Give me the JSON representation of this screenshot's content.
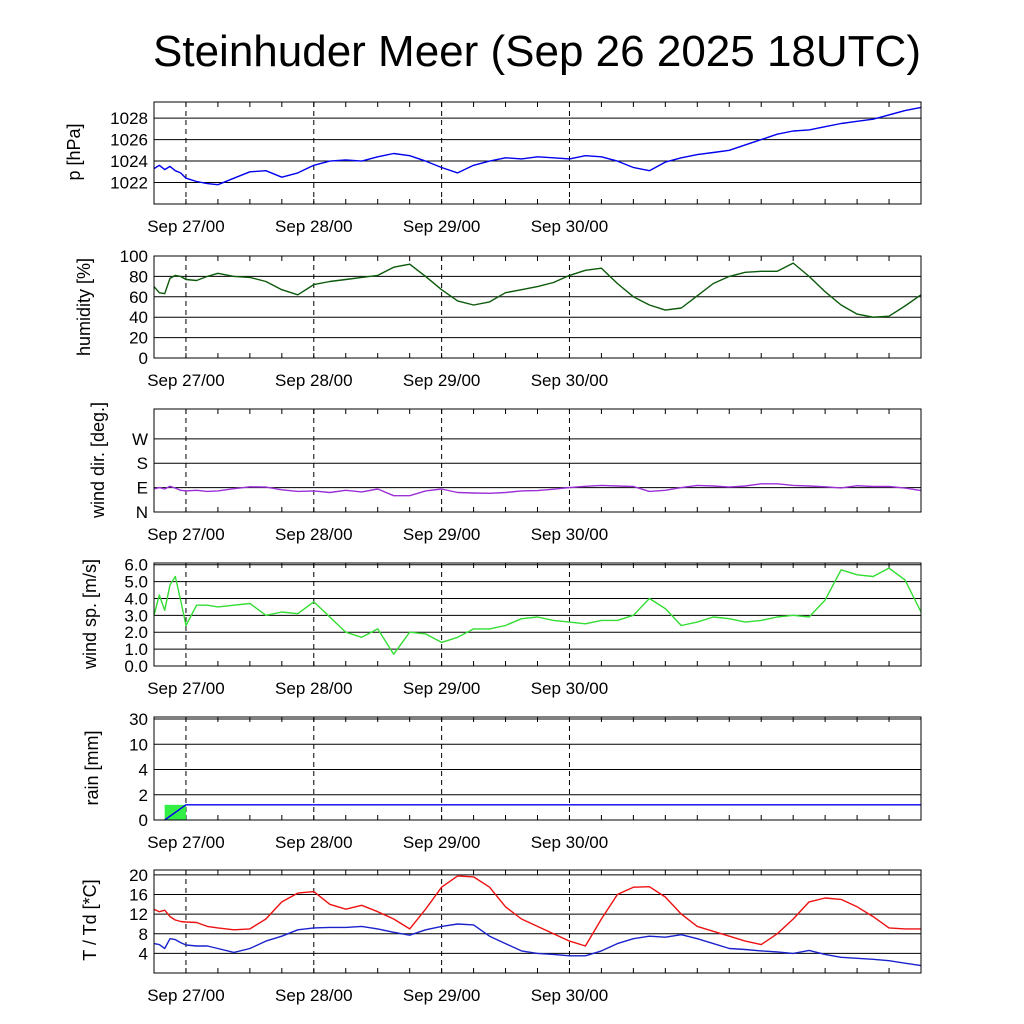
{
  "title": "Steinhuder Meer (Sep 26 2025 18UTC)",
  "x_tick_labels": [
    "Sep 27/00",
    "Sep 28/00",
    "Sep 29/00",
    "Sep 30/00"
  ],
  "chart_data": [
    {
      "type": "line",
      "ylabel": "p [hPa]",
      "x_hours_since_start": [
        0,
        1,
        2,
        3,
        4,
        5,
        6,
        8,
        10,
        12,
        15,
        18,
        21,
        24,
        27,
        30,
        33,
        36,
        39,
        42,
        45,
        48,
        51,
        54,
        57,
        60,
        63,
        66,
        69,
        72,
        75,
        78,
        81,
        84,
        87,
        90,
        93,
        96,
        99,
        102,
        105,
        108,
        111,
        114,
        117,
        120,
        123,
        126,
        129,
        132,
        135,
        138,
        141,
        144
      ],
      "series": [
        {
          "name": "pressure",
          "color": "#0000ee",
          "values": [
            1023.3,
            1023.6,
            1023.2,
            1023.5,
            1023.1,
            1022.9,
            1022.4,
            1022.1,
            1021.9,
            1021.8,
            1022.4,
            1023.0,
            1023.1,
            1022.5,
            1022.9,
            1023.6,
            1024.0,
            1024.1,
            1024.0,
            1024.4,
            1024.7,
            1024.5,
            1024.0,
            1023.4,
            1022.9,
            1023.6,
            1024.0,
            1024.3,
            1024.2,
            1024.4,
            1024.3,
            1024.2,
            1024.5,
            1024.4,
            1024.0,
            1023.4,
            1023.1,
            1023.9,
            1024.3,
            1024.6,
            1024.8,
            1025.0,
            1025.5,
            1026.0,
            1026.5,
            1026.8,
            1026.9,
            1027.2,
            1027.5,
            1027.7,
            1027.9,
            1028.3,
            1028.7,
            1029.0
          ]
        }
      ],
      "ylim": [
        1020,
        1029.5
      ],
      "yticks": [
        1022,
        1024,
        1026,
        1028
      ],
      "ytick_labels": [
        "1022",
        "1024",
        "1026",
        "1028"
      ]
    },
    {
      "type": "line",
      "ylabel": "humidity [%]",
      "x_hours_since_start": [
        0,
        1,
        2,
        3,
        4,
        5,
        6,
        8,
        10,
        12,
        15,
        18,
        21,
        24,
        27,
        30,
        33,
        36,
        39,
        42,
        45,
        48,
        51,
        54,
        57,
        60,
        63,
        66,
        69,
        72,
        75,
        78,
        81,
        84,
        87,
        90,
        93,
        96,
        99,
        102,
        105,
        108,
        111,
        114,
        117,
        120,
        123,
        126,
        129,
        132,
        135,
        138,
        141,
        144
      ],
      "series": [
        {
          "name": "humidity",
          "color": "#0b5a0b",
          "values": [
            70,
            64,
            63,
            78,
            81,
            80,
            77,
            76,
            80,
            83,
            80,
            79,
            75,
            67,
            62,
            72,
            75,
            77,
            79,
            81,
            89,
            92,
            80,
            67,
            56,
            52,
            55,
            64,
            67,
            70,
            74,
            81,
            86,
            88,
            73,
            60,
            52,
            47,
            49,
            61,
            73,
            80,
            84,
            85,
            85,
            93,
            80,
            65,
            52,
            43,
            40,
            41,
            51,
            62
          ]
        }
      ],
      "ylim": [
        0,
        100
      ],
      "yticks": [
        0,
        20,
        40,
        60,
        80,
        100
      ],
      "ytick_labels": [
        "0",
        "20",
        "40",
        "60",
        "80",
        "100"
      ]
    },
    {
      "type": "line",
      "ylabel": "wind dir. [deg.]",
      "x_hours_since_start": [
        0,
        1,
        2,
        3,
        4,
        5,
        6,
        8,
        10,
        12,
        15,
        18,
        21,
        24,
        27,
        30,
        33,
        36,
        39,
        42,
        45,
        48,
        51,
        54,
        57,
        60,
        63,
        66,
        69,
        72,
        75,
        78,
        81,
        84,
        87,
        90,
        93,
        96,
        99,
        102,
        105,
        108,
        111,
        114,
        117,
        120,
        123,
        126,
        129,
        132,
        135,
        138,
        141,
        144
      ],
      "series": [
        {
          "name": "wind direction",
          "color": "#9b30d8",
          "values": [
            85,
            90,
            85,
            95,
            88,
            80,
            78,
            80,
            76,
            78,
            86,
            93,
            92,
            82,
            76,
            78,
            72,
            80,
            74,
            85,
            60,
            60,
            78,
            85,
            72,
            70,
            69,
            72,
            78,
            79,
            84,
            90,
            95,
            98,
            96,
            94,
            76,
            80,
            90,
            98,
            96,
            92,
            96,
            104,
            104,
            98,
            96,
            93,
            89,
            97,
            94,
            94,
            88,
            79
          ]
        }
      ],
      "ylim": [
        0,
        380
      ],
      "yticks": [
        0,
        90,
        180,
        270
      ],
      "ytick_labels": [
        "N",
        "E",
        "S",
        "W"
      ]
    },
    {
      "type": "line",
      "ylabel": "wind sp. [m/s]",
      "x_hours_since_start": [
        0,
        1,
        2,
        3,
        4,
        5,
        6,
        8,
        10,
        12,
        15,
        18,
        21,
        24,
        27,
        30,
        33,
        36,
        39,
        42,
        45,
        48,
        51,
        54,
        57,
        60,
        63,
        66,
        69,
        72,
        75,
        78,
        81,
        84,
        87,
        90,
        93,
        96,
        99,
        102,
        105,
        108,
        111,
        114,
        117,
        120,
        123,
        126,
        129,
        132,
        135,
        138,
        141,
        144
      ],
      "series": [
        {
          "name": "wind speed",
          "color": "#33dd33",
          "values": [
            3.0,
            4.2,
            3.3,
            4.8,
            5.3,
            3.9,
            2.4,
            3.6,
            3.6,
            3.5,
            3.6,
            3.7,
            3.0,
            3.2,
            3.1,
            3.8,
            2.9,
            2.0,
            1.7,
            2.2,
            0.7,
            2.0,
            1.9,
            1.4,
            1.7,
            2.2,
            2.2,
            2.4,
            2.8,
            2.9,
            2.7,
            2.6,
            2.5,
            2.7,
            2.7,
            3.0,
            4.0,
            3.4,
            2.4,
            2.6,
            2.9,
            2.8,
            2.6,
            2.7,
            2.9,
            3.0,
            2.9,
            3.9,
            5.7,
            5.4,
            5.3,
            5.8,
            5.1,
            3.2
          ]
        }
      ],
      "ylim": [
        0,
        6.1
      ],
      "yticks": [
        0,
        1,
        2,
        3,
        4,
        5,
        6
      ],
      "ytick_labels": [
        "0.0",
        "1.0",
        "2.0",
        "3.0",
        "4.0",
        "5.0",
        "6.0"
      ]
    },
    {
      "type": "bar",
      "ylabel": "rain [mm]",
      "yticks": [
        0,
        2,
        4,
        10,
        30
      ],
      "ytick_labels": [
        "0",
        "2",
        "4",
        "10",
        "30"
      ],
      "yscale": "nonlinear (0, 2, 4, 10, 30 equally spaced)",
      "bars": [
        {
          "start_hour": 2,
          "end_hour": 6,
          "value": 1.2,
          "color": "#33ee44"
        }
      ],
      "cumulative": {
        "name": "cumulative rain",
        "color": "#0000ee",
        "x_hours_since_start": [
          2,
          6,
          144
        ],
        "values": [
          0,
          1.2,
          1.2
        ]
      }
    },
    {
      "type": "line",
      "ylabel": "T / Td [*C]",
      "x_hours_since_start": [
        0,
        1,
        2,
        3,
        4,
        5,
        6,
        8,
        10,
        12,
        15,
        18,
        21,
        24,
        27,
        30,
        33,
        36,
        39,
        42,
        45,
        48,
        51,
        54,
        57,
        60,
        63,
        66,
        69,
        72,
        75,
        78,
        81,
        84,
        87,
        90,
        93,
        96,
        99,
        102,
        105,
        108,
        111,
        114,
        117,
        120,
        123,
        126,
        129,
        132,
        135,
        138,
        141,
        144
      ],
      "series": [
        {
          "name": "T",
          "color": "#ee1111",
          "values": [
            13,
            12.5,
            12.8,
            11.5,
            10.8,
            10.5,
            10.4,
            10.3,
            9.5,
            9.2,
            8.8,
            9.0,
            11.0,
            14.5,
            16.3,
            16.6,
            14.0,
            13.0,
            13.8,
            12.5,
            11.0,
            9.0,
            13.0,
            17.5,
            19.8,
            19.6,
            17.5,
            13.5,
            11.0,
            9.5,
            8.0,
            6.5,
            5.5,
            11.0,
            16.0,
            17.5,
            17.6,
            15.5,
            12.0,
            9.5,
            8.5,
            7.5,
            6.5,
            5.8,
            8.0,
            11.0,
            14.5,
            15.3,
            15.0,
            13.5,
            11.5,
            9.2,
            9.0,
            9.0
          ]
        },
        {
          "name": "Td",
          "color": "#1a22cc",
          "values": [
            6.0,
            5.8,
            5.0,
            7.0,
            6.8,
            6.2,
            5.7,
            5.5,
            5.5,
            5.0,
            4.2,
            5.0,
            6.5,
            7.5,
            8.8,
            9.2,
            9.3,
            9.3,
            9.5,
            9.0,
            8.3,
            7.7,
            8.8,
            9.5,
            10.0,
            9.8,
            7.5,
            6.0,
            4.5,
            4.0,
            3.8,
            3.5,
            3.5,
            4.5,
            6.0,
            7.0,
            7.5,
            7.3,
            7.8,
            7.0,
            6.0,
            5.0,
            4.8,
            4.5,
            4.3,
            4.0,
            4.6,
            3.8,
            3.2,
            3.0,
            2.8,
            2.5,
            2.0,
            1.5
          ]
        }
      ],
      "ylim": [
        0,
        21
      ],
      "yticks": [
        4,
        8,
        12,
        16,
        20
      ],
      "ytick_labels": [
        "4",
        "8",
        "12",
        "16",
        "20"
      ]
    }
  ]
}
